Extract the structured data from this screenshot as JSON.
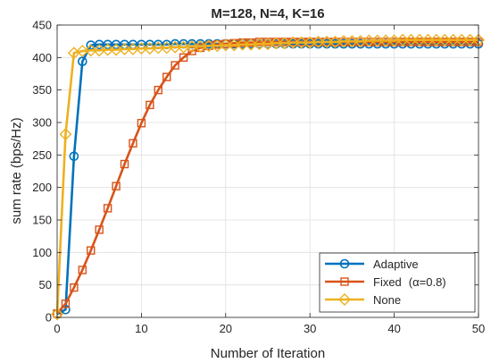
{
  "chart_data": {
    "type": "line",
    "title": "M=128, N=4, K=16",
    "xlabel": "Number of Iteration",
    "ylabel": "sum rate (bps/Hz)",
    "xlim": [
      0,
      50
    ],
    "ylim": [
      0,
      450
    ],
    "xticks": [
      0,
      10,
      20,
      30,
      40,
      50
    ],
    "yticks": [
      0,
      50,
      100,
      150,
      200,
      250,
      300,
      350,
      400,
      450
    ],
    "grid": true,
    "legend_position": "bottom-right",
    "series": [
      {
        "name": "Adaptive",
        "color": "#0072BD",
        "marker": "circle",
        "x": [
          0,
          1,
          2,
          3,
          4,
          5,
          6,
          7,
          8,
          9,
          10,
          11,
          12,
          13,
          14,
          15,
          16,
          17,
          18,
          19,
          20,
          21,
          22,
          23,
          24,
          25,
          26,
          27,
          28,
          29,
          30,
          31,
          32,
          33,
          34,
          35,
          36,
          37,
          38,
          39,
          40,
          41,
          42,
          43,
          44,
          45,
          46,
          47,
          48,
          49,
          50
        ],
        "y": [
          5,
          12,
          248,
          394,
          419,
          420,
          420,
          420,
          420,
          420,
          420,
          420,
          420,
          420,
          421,
          421,
          421,
          421,
          421,
          421,
          421,
          421,
          421,
          421,
          421,
          421,
          421,
          421,
          421,
          421,
          421,
          421,
          421,
          421,
          421,
          421,
          421,
          421,
          421,
          421,
          421,
          421,
          421,
          421,
          421,
          421,
          421,
          421,
          421,
          421,
          421
        ]
      },
      {
        "name": "Fixed",
        "legend_suffix": "(α=0.8)",
        "color": "#D95319",
        "marker": "square",
        "x": [
          0,
          1,
          2,
          3,
          4,
          5,
          6,
          7,
          8,
          9,
          10,
          11,
          12,
          13,
          14,
          15,
          16,
          17,
          18,
          19,
          20,
          21,
          22,
          23,
          24,
          25,
          26,
          27,
          28,
          29,
          30,
          31,
          32,
          33,
          34,
          35,
          36,
          37,
          38,
          39,
          40,
          41,
          42,
          43,
          44,
          45,
          46,
          47,
          48,
          49,
          50
        ],
        "y": [
          6,
          21,
          46,
          73,
          103,
          135,
          168,
          202,
          236,
          268,
          299,
          327,
          350,
          370,
          388,
          400,
          410,
          415,
          418,
          420,
          421,
          422,
          423,
          423,
          424,
          424,
          424,
          424,
          424,
          424,
          424,
          424,
          424,
          424,
          424,
          424,
          424,
          424,
          424,
          424,
          424,
          424,
          424,
          424,
          424,
          424,
          424,
          424,
          424,
          424,
          424
        ]
      },
      {
        "name": "None",
        "color": "#EDB120",
        "marker": "diamond",
        "x": [
          0,
          1,
          2,
          3,
          4,
          5,
          6,
          7,
          8,
          9,
          10,
          11,
          12,
          13,
          14,
          15,
          16,
          17,
          18,
          19,
          20,
          21,
          22,
          23,
          24,
          25,
          26,
          27,
          28,
          29,
          30,
          31,
          32,
          33,
          34,
          35,
          36,
          37,
          38,
          39,
          40,
          41,
          42,
          43,
          44,
          45,
          46,
          47,
          48,
          49,
          50
        ],
        "y": [
          5,
          282,
          407,
          410,
          411,
          411,
          412,
          412,
          413,
          413,
          414,
          414,
          415,
          415,
          416,
          416,
          417,
          417,
          418,
          418,
          419,
          419,
          420,
          420,
          421,
          421,
          422,
          422,
          423,
          423,
          423,
          424,
          424,
          424,
          425,
          425,
          425,
          426,
          426,
          426,
          426,
          427,
          427,
          427,
          427,
          427,
          427,
          427,
          427,
          427,
          427
        ]
      }
    ]
  }
}
